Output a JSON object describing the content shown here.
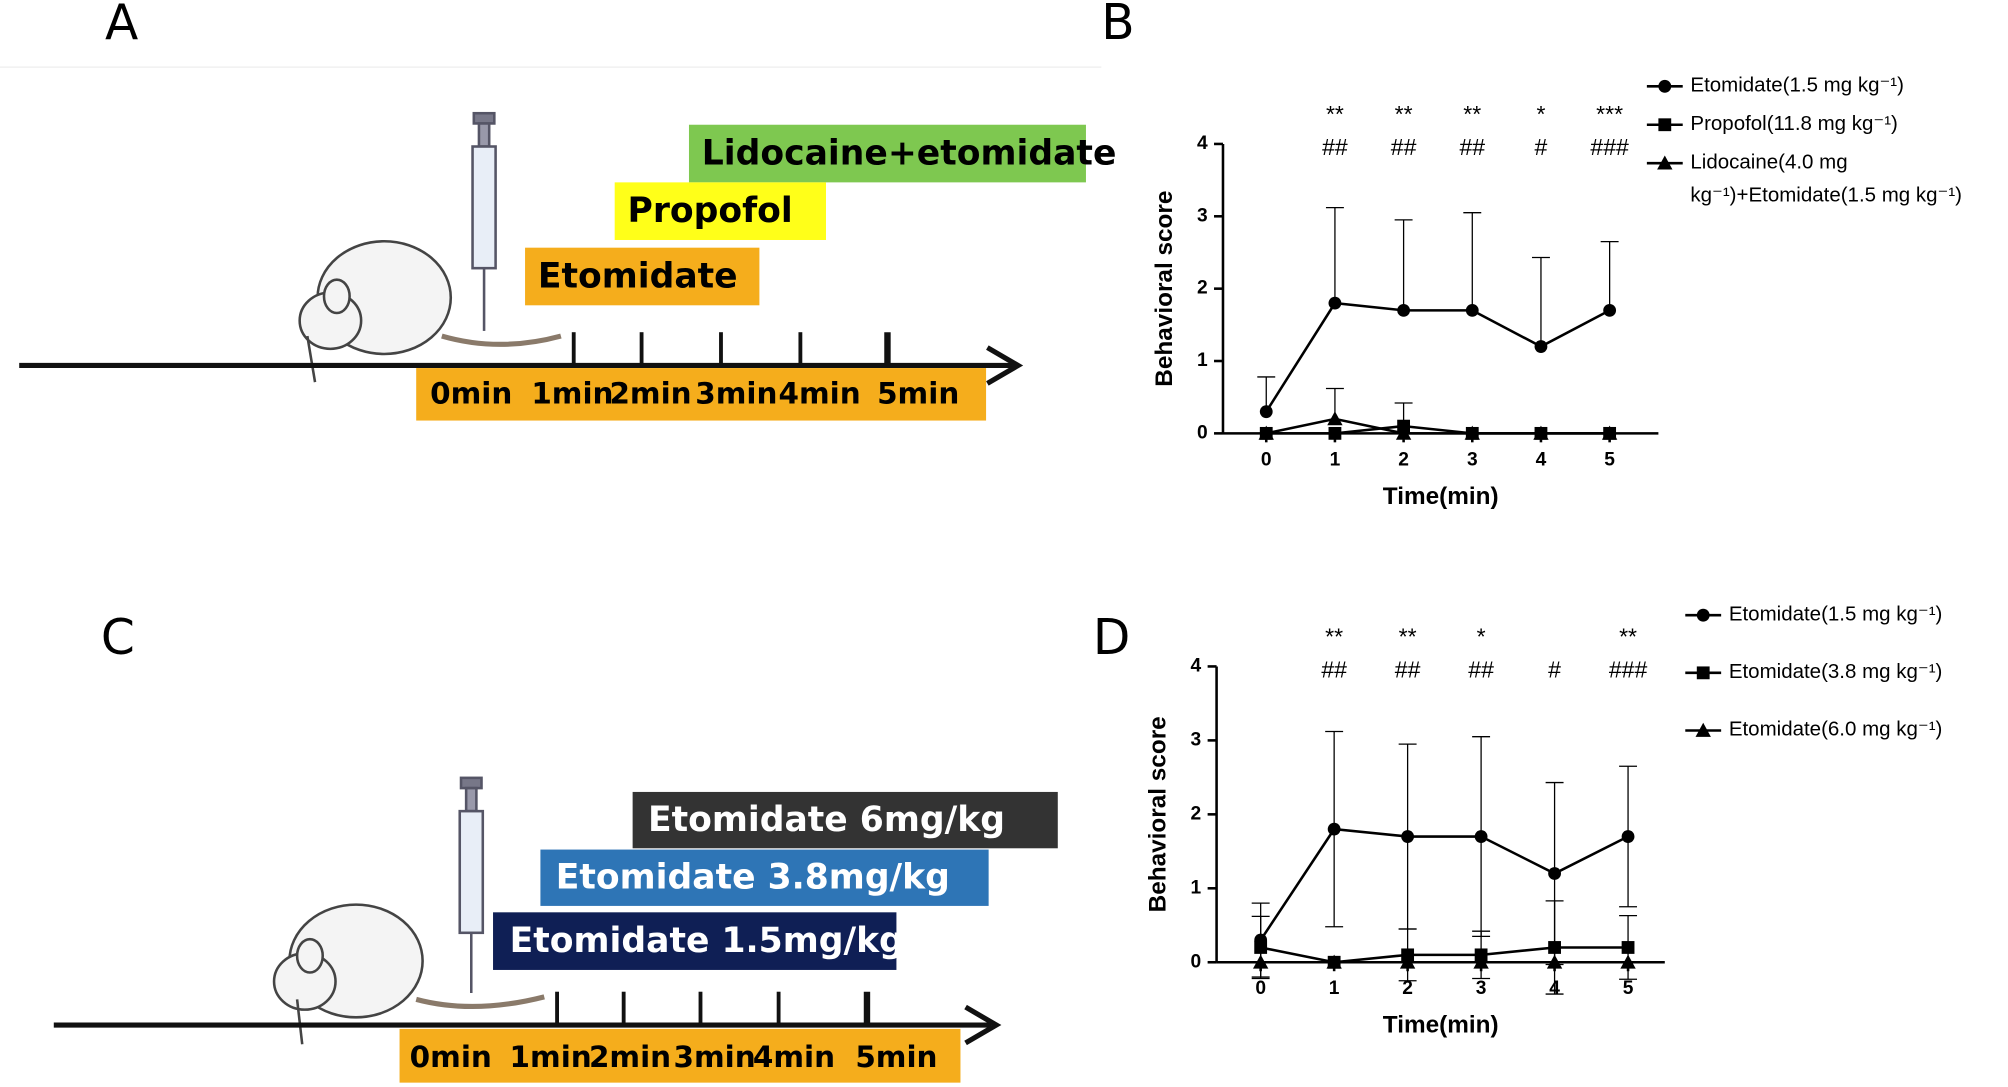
{
  "diagrams": [
    {
      "label": "A",
      "bars": [
        "Lidocaine+etomidate",
        "Propofol",
        "Etomidate"
      ],
      "times": [
        "0min",
        "1min",
        "2min",
        "3min",
        "4min",
        "5min"
      ]
    },
    {
      "label": "C",
      "bars": [
        "Etomidate   6mg/kg",
        "Etomidate 3.8mg/kg",
        "Etomidate 1.5mg/kg"
      ],
      "times": [
        "0min",
        "1min",
        "2min",
        "3min",
        "4min",
        "5min"
      ]
    }
  ],
  "chart_data": [
    {
      "type": "line",
      "label": "B",
      "xlabel": "Time(min)",
      "ylabel": "Behavioral score",
      "x": [
        0,
        1,
        2,
        3,
        4,
        5
      ],
      "xlim": [
        -0.63,
        5.71
      ],
      "xticks": [
        0,
        1,
        2,
        3,
        4,
        5
      ],
      "ylim": [
        0,
        4
      ],
      "yticks": [
        0,
        1,
        2,
        3,
        4
      ],
      "error_bars": "upper",
      "series": [
        {
          "name": "Etomidate(1.5 mg kg⁻¹)",
          "color": "#000000",
          "marker": "circle",
          "values": [
            0.3,
            1.8,
            1.7,
            1.7,
            1.2,
            1.7
          ],
          "errors": [
            0.48,
            1.32,
            1.25,
            1.35,
            1.23,
            0.95
          ]
        },
        {
          "name": "Propofol(11.8 mg kg⁻¹)",
          "color": "#000000",
          "marker": "square",
          "values": [
            0,
            0,
            0.1,
            0,
            0,
            0
          ],
          "errors": [
            0,
            0,
            0.32,
            0,
            0,
            0
          ]
        },
        {
          "name": "Lidocaine(4.0 mg kg⁻¹)+Etomidate(1.5 mg kg⁻¹)",
          "color": "#000000",
          "marker": "triangle",
          "values": [
            0,
            0.2,
            0,
            0,
            0,
            0
          ],
          "errors": [
            0,
            0.42,
            0,
            0,
            0,
            0
          ]
        }
      ],
      "significance": [
        {
          "x": 1,
          "stars": "**",
          "hashes": "##"
        },
        {
          "x": 2,
          "stars": "**",
          "hashes": "##"
        },
        {
          "x": 3,
          "stars": "**",
          "hashes": "##"
        },
        {
          "x": 4,
          "stars": "*",
          "hashes": "#"
        },
        {
          "x": 5,
          "stars": "***",
          "hashes": "###"
        }
      ]
    },
    {
      "type": "line",
      "label": "D",
      "xlabel": "Time(min)",
      "ylabel": "Behavioral score",
      "x": [
        0,
        1,
        2,
        3,
        4,
        5
      ],
      "xlim": [
        -0.6,
        5.5
      ],
      "xticks": [
        0,
        1,
        2,
        3,
        4,
        5
      ],
      "ylim": [
        0,
        4
      ],
      "yticks": [
        0,
        1,
        2,
        3,
        4
      ],
      "error_bars": "both",
      "series": [
        {
          "name": "Etomidate(1.5 mg kg⁻¹)",
          "color": "#000000",
          "marker": "circle",
          "values": [
            0.3,
            1.8,
            1.7,
            1.7,
            1.2,
            1.7
          ],
          "errors": [
            0.5,
            1.32,
            1.25,
            1.35,
            1.23,
            0.95
          ]
        },
        {
          "name": "Etomidate(3.8 mg kg⁻¹)",
          "color": "#000000",
          "marker": "square",
          "values": [
            0.2,
            0,
            0.1,
            0.1,
            0.2,
            0.2
          ],
          "errors": [
            0.42,
            0,
            0.35,
            0.32,
            0.63,
            0.43
          ]
        },
        {
          "name": "Etomidate(6.0 mg kg⁻¹)",
          "color": "#000000",
          "marker": "triangle",
          "values": [
            0,
            0,
            0,
            0,
            0,
            0
          ],
          "errors": [
            0,
            0,
            0,
            0,
            0,
            0
          ]
        }
      ],
      "significance": [
        {
          "x": 1,
          "stars": "**",
          "hashes": "##"
        },
        {
          "x": 2,
          "stars": "**",
          "hashes": "##"
        },
        {
          "x": 3,
          "stars": "*",
          "hashes": "##"
        },
        {
          "x": 4,
          "hashes": "#"
        },
        {
          "x": 5,
          "stars": "**",
          "hashes": "###"
        }
      ]
    }
  ]
}
